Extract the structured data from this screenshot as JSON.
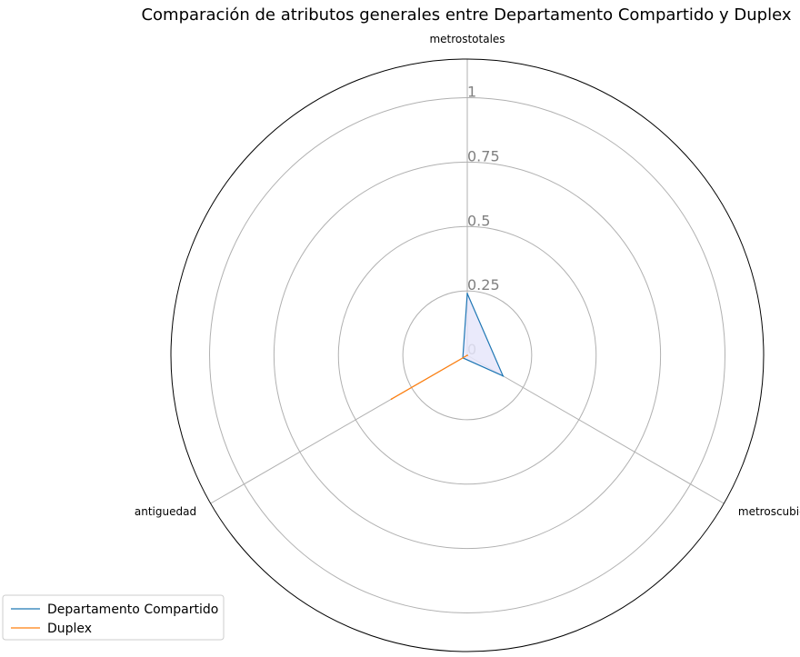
{
  "chart_data": {
    "type": "radar",
    "title": "Comparación de atributos generales entre Departamento Compartido y Duplex",
    "axes": [
      "metrostotales",
      "metroscubiertos",
      "antiguedad"
    ],
    "rticks": [
      0,
      0.25,
      0.5,
      0.75,
      1
    ],
    "rtick_labels": [
      "0",
      "0.25",
      "0.5",
      "0.75",
      "1"
    ],
    "rlim": [
      0,
      1.15
    ],
    "grid": true,
    "legend_position": "bottom-left",
    "series": [
      {
        "name": "Departamento Compartido",
        "values": [
          0.24,
          0.16,
          0.02
        ],
        "color": "#1f77b4",
        "fill": "#e6e6fa"
      },
      {
        "name": "Duplex",
        "values": [
          0.0,
          0.0,
          0.34
        ],
        "color": "#ff7f0e"
      }
    ]
  }
}
